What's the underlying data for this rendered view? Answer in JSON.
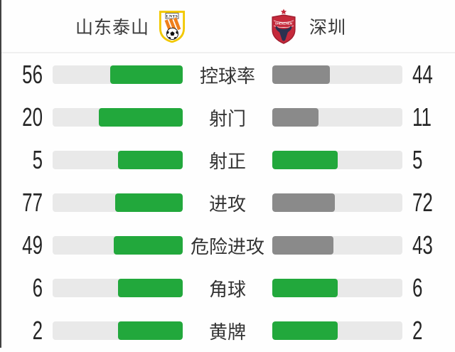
{
  "header": {
    "home": {
      "name": "山东泰山",
      "crest_text": "LNTS"
    },
    "away": {
      "name": "深圳",
      "crest_text": "SHENZHEN"
    }
  },
  "stats": [
    {
      "label": "控球率",
      "home": 56,
      "away": 44,
      "home_color": "green",
      "away_color": "gray"
    },
    {
      "label": "射门",
      "home": 20,
      "away": 11,
      "home_color": "green",
      "away_color": "gray"
    },
    {
      "label": "射正",
      "home": 5,
      "away": 5,
      "home_color": "green",
      "away_color": "green"
    },
    {
      "label": "进攻",
      "home": 77,
      "away": 72,
      "home_color": "green",
      "away_color": "gray"
    },
    {
      "label": "危险进攻",
      "home": 49,
      "away": 43,
      "home_color": "green",
      "away_color": "gray"
    },
    {
      "label": "角球",
      "home": 6,
      "away": 6,
      "home_color": "green",
      "away_color": "green"
    },
    {
      "label": "黄牌",
      "home": 2,
      "away": 2,
      "home_color": "green",
      "away_color": "green"
    }
  ],
  "colors": {
    "green": "#22a83c",
    "gray": "#8a8a8a",
    "track": "#e9e9e9",
    "home_crest_yellow": "#f2c800",
    "home_crest_orange": "#ef7f1b",
    "away_crest_red": "#c5293b",
    "away_crest_navy": "#2b3150"
  }
}
